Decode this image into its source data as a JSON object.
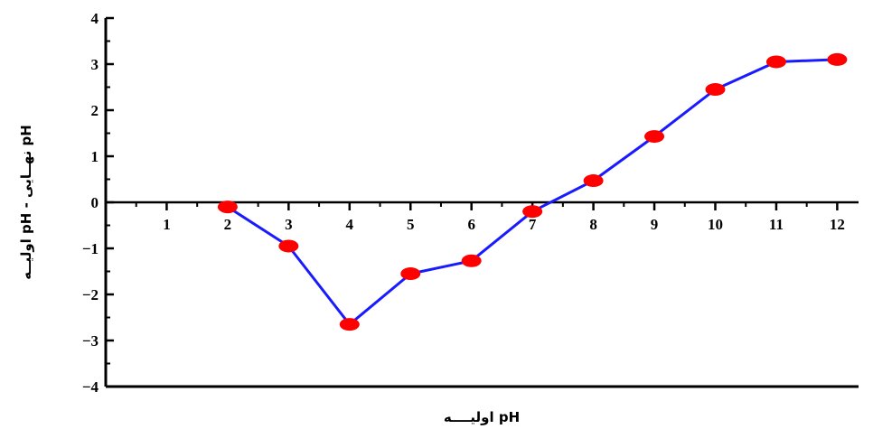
{
  "chart_data": {
    "type": "line",
    "title": "",
    "xlabel": "pH اولیــــه",
    "ylabel": "pH نهــایی - pH اولیــه",
    "x_ticks": [
      "1",
      "2",
      "3",
      "4",
      "5",
      "6",
      "7",
      "8",
      "9",
      "10",
      "11",
      "12"
    ],
    "y_ticks": [
      "4",
      "3",
      "2",
      "1",
      "0",
      "-1",
      "-2",
      "-3",
      "-4"
    ],
    "xlim": [
      0,
      12.35
    ],
    "ylim": [
      -4,
      4
    ],
    "grid": false,
    "legend": "none",
    "line_color": "#1a1aff",
    "marker_color": "#ff0000",
    "series": [
      {
        "x": [
          2,
          3,
          4,
          5,
          6,
          7,
          8,
          9,
          10,
          11,
          12
        ],
        "y": [
          -0.1,
          -0.95,
          -2.65,
          -1.55,
          -1.27,
          -0.2,
          0.47,
          1.43,
          2.45,
          3.05,
          3.1
        ]
      }
    ]
  }
}
